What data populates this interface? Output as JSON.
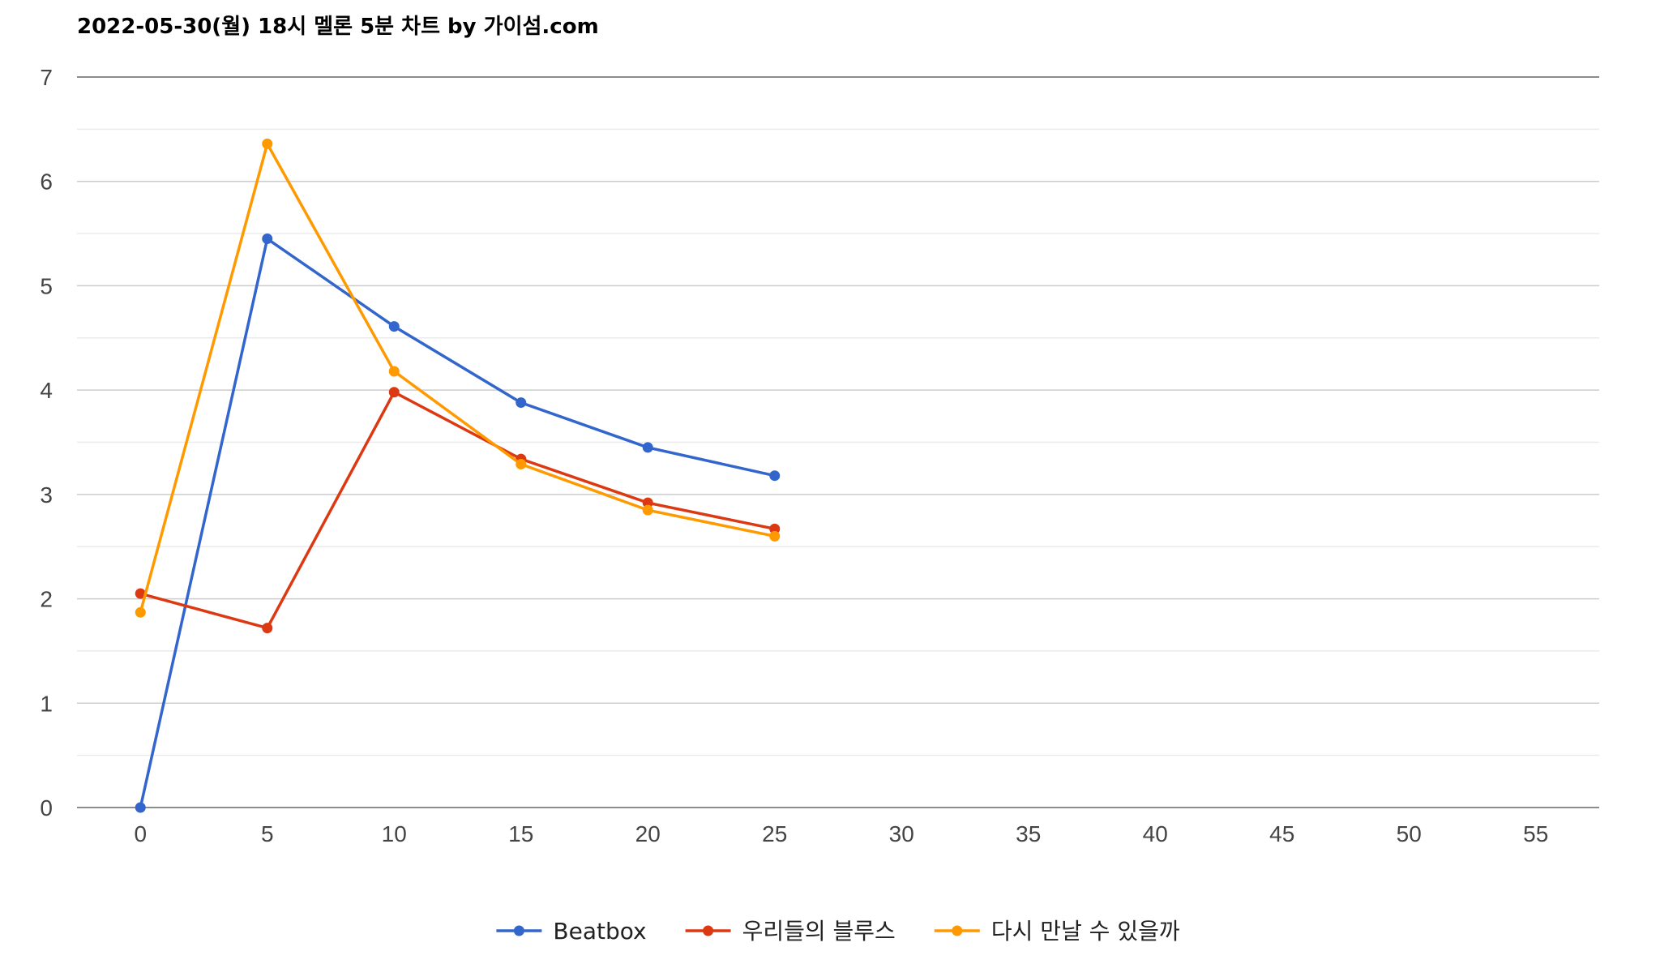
{
  "chart_data": {
    "type": "line",
    "title": "2022-05-30(월) 18시 멜론 5분 차트 by 가이섬.com",
    "xlabel": "",
    "ylabel": "",
    "x": [
      0,
      5,
      10,
      15,
      20,
      25
    ],
    "xlim": [
      -2.5,
      57.5
    ],
    "ylim": [
      0,
      7
    ],
    "x_ticks": [
      "0",
      "5",
      "10",
      "15",
      "20",
      "25",
      "30",
      "35",
      "40",
      "45",
      "50",
      "55"
    ],
    "y_ticks": [
      "0",
      "1",
      "2",
      "3",
      "4",
      "5",
      "6",
      "7"
    ],
    "grid": true,
    "legend_position": "bottom",
    "series": [
      {
        "name": "Beatbox",
        "color": "#3366cc",
        "values": [
          0,
          5.45,
          4.61,
          3.88,
          3.45,
          3.18
        ]
      },
      {
        "name": "우리들의 블루스",
        "color": "#dc3912",
        "values": [
          2.05,
          1.72,
          3.98,
          3.34,
          2.92,
          2.67
        ]
      },
      {
        "name": "다시 만날 수 있을까",
        "color": "#ff9900",
        "values": [
          1.87,
          6.36,
          4.18,
          3.29,
          2.85,
          2.6
        ]
      }
    ]
  }
}
